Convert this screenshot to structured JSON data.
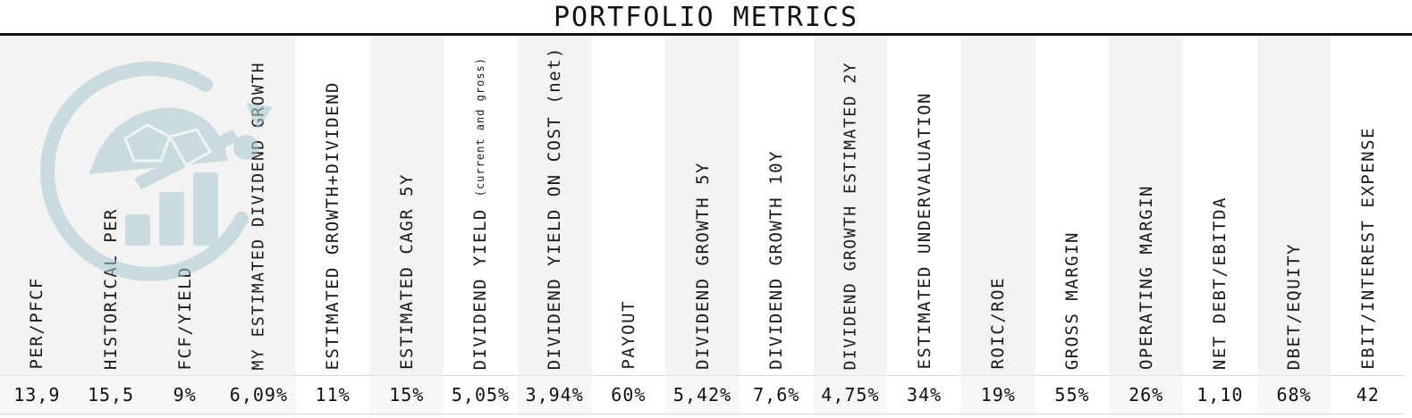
{
  "title": "PORTFOLIO METRICS",
  "logo": {
    "icon": "turtle-growth-logo-icon",
    "color": "#a9c9cf"
  },
  "metrics": [
    {
      "label": "PER/PFCF",
      "sub": "",
      "value": "13,9"
    },
    {
      "label": "HISTORICAL PER",
      "sub": "",
      "value": "15,5"
    },
    {
      "label": "FCF/YIELD",
      "sub": "",
      "value": "9%"
    },
    {
      "label": "MY ESTIMATED DIVIDEND GROWTH",
      "sub": "",
      "value": "6,09%"
    },
    {
      "label": "ESTIMATED GROWTH+DIVIDEND",
      "sub": "",
      "value": "11%"
    },
    {
      "label": "ESTIMATED CAGR 5Y",
      "sub": "",
      "value": "15%"
    },
    {
      "label": "DIVIDEND YIELD",
      "sub": "(current and gross)",
      "value": "5,05%"
    },
    {
      "label": "DIVIDEND YIELD ON COST (net)",
      "sub": "",
      "value": "3,94%"
    },
    {
      "label": "PAYOUT",
      "sub": "",
      "value": "60%"
    },
    {
      "label": "DIVIDEND GROWTH 5Y",
      "sub": "",
      "value": "5,42%"
    },
    {
      "label": "DIVIDEND GROWTH 10Y",
      "sub": "",
      "value": "7,6%"
    },
    {
      "label": "DIVIDEND GROWTH ESTIMATED 2Y",
      "sub": "",
      "value": "4,75%"
    },
    {
      "label": "ESTIMATED UNDERVALUATION",
      "sub": "",
      "value": "34%"
    },
    {
      "label": "ROIC/ROE",
      "sub": "",
      "value": "19%"
    },
    {
      "label": "GROSS MARGIN",
      "sub": "",
      "value": "55%"
    },
    {
      "label": "OPERATING MARGIN",
      "sub": "",
      "value": "26%"
    },
    {
      "label": "NET DEBT/EBITDA",
      "sub": "",
      "value": "1,10"
    },
    {
      "label": "DBET/EQUITY",
      "sub": "",
      "value": "68%"
    },
    {
      "label": "EBIT/INTEREST EXPENSE",
      "sub": "",
      "value": "42"
    }
  ]
}
